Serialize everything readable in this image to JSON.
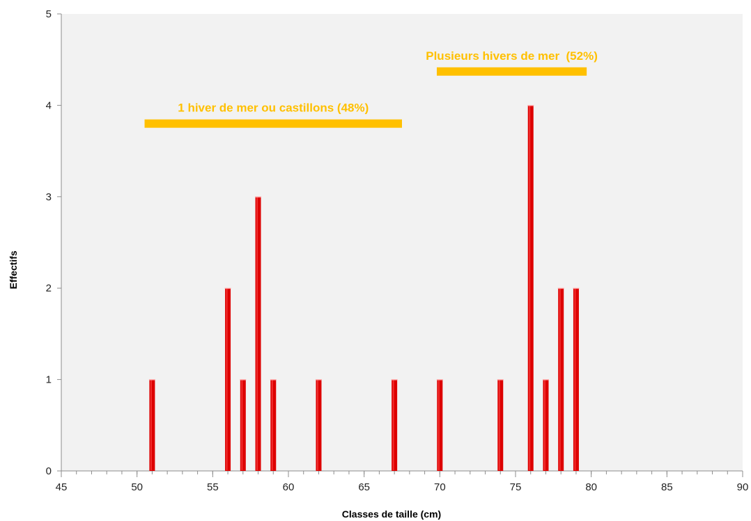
{
  "chart_data": {
    "type": "bar",
    "xlabel": "Classes de taille (cm)",
    "ylabel": "Effectifs",
    "xlim": [
      45,
      90
    ],
    "ylim": [
      0,
      5
    ],
    "x_ticks": [
      45,
      50,
      55,
      60,
      65,
      70,
      75,
      80,
      85,
      90
    ],
    "y_ticks": [
      0,
      1,
      2,
      3,
      4,
      5
    ],
    "grid": false,
    "legend": "none",
    "bar_color": "#dd0000",
    "bar_highlight_color": "#ff5050",
    "plot_background": "#f2f2f2",
    "points": [
      {
        "x": 51,
        "y": 1
      },
      {
        "x": 56,
        "y": 2
      },
      {
        "x": 57,
        "y": 1
      },
      {
        "x": 58,
        "y": 3
      },
      {
        "x": 59,
        "y": 1
      },
      {
        "x": 62,
        "y": 1
      },
      {
        "x": 67,
        "y": 1
      },
      {
        "x": 70,
        "y": 1
      },
      {
        "x": 74,
        "y": 1
      },
      {
        "x": 76,
        "y": 4
      },
      {
        "x": 77,
        "y": 1
      },
      {
        "x": 78,
        "y": 2
      },
      {
        "x": 79,
        "y": 2
      }
    ],
    "annotations": [
      {
        "text": "1 hiver de mer ou castillons (48%)",
        "x_from": 50.5,
        "x_to": 67.5,
        "y": 3.8,
        "color": "#ffc000"
      },
      {
        "text": "Plusieurs hivers de mer  (52%)",
        "x_from": 69.8,
        "x_to": 79.7,
        "y": 4.37,
        "color": "#ffc000"
      }
    ]
  }
}
